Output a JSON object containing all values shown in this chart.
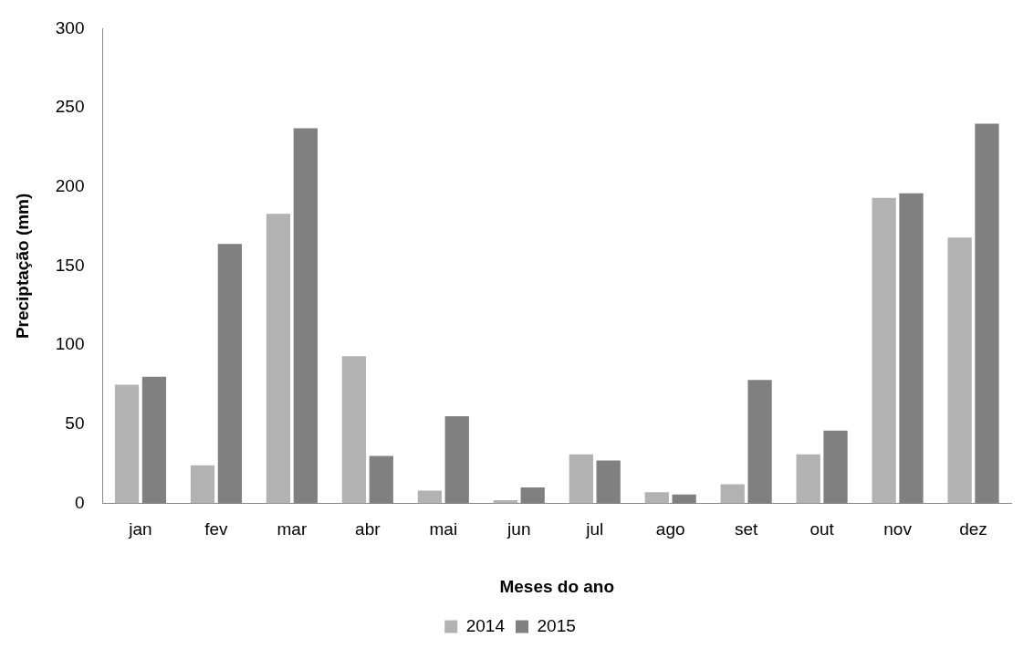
{
  "chart_data": {
    "type": "bar",
    "xlabel": "Meses do ano",
    "ylabel": "Preciptação (mm)",
    "categories": [
      "jan",
      "fev",
      "mar",
      "abr",
      "mai",
      "jun",
      "jul",
      "ago",
      "set",
      "out",
      "nov",
      "dez"
    ],
    "series": [
      {
        "name": "2014",
        "color": "#b2b2b2",
        "values": [
          75,
          24,
          183,
          93,
          8,
          2,
          31,
          7,
          12,
          31,
          193,
          168
        ]
      },
      {
        "name": "2015",
        "color": "#808080",
        "values": [
          80,
          164,
          237,
          30,
          55,
          10,
          27,
          5.5,
          78,
          46,
          196,
          240
        ]
      }
    ],
    "ylim": [
      0,
      300
    ],
    "yticks": [
      0,
      50,
      100,
      150,
      200,
      250,
      300
    ],
    "grid": false,
    "legend": "bottom"
  }
}
